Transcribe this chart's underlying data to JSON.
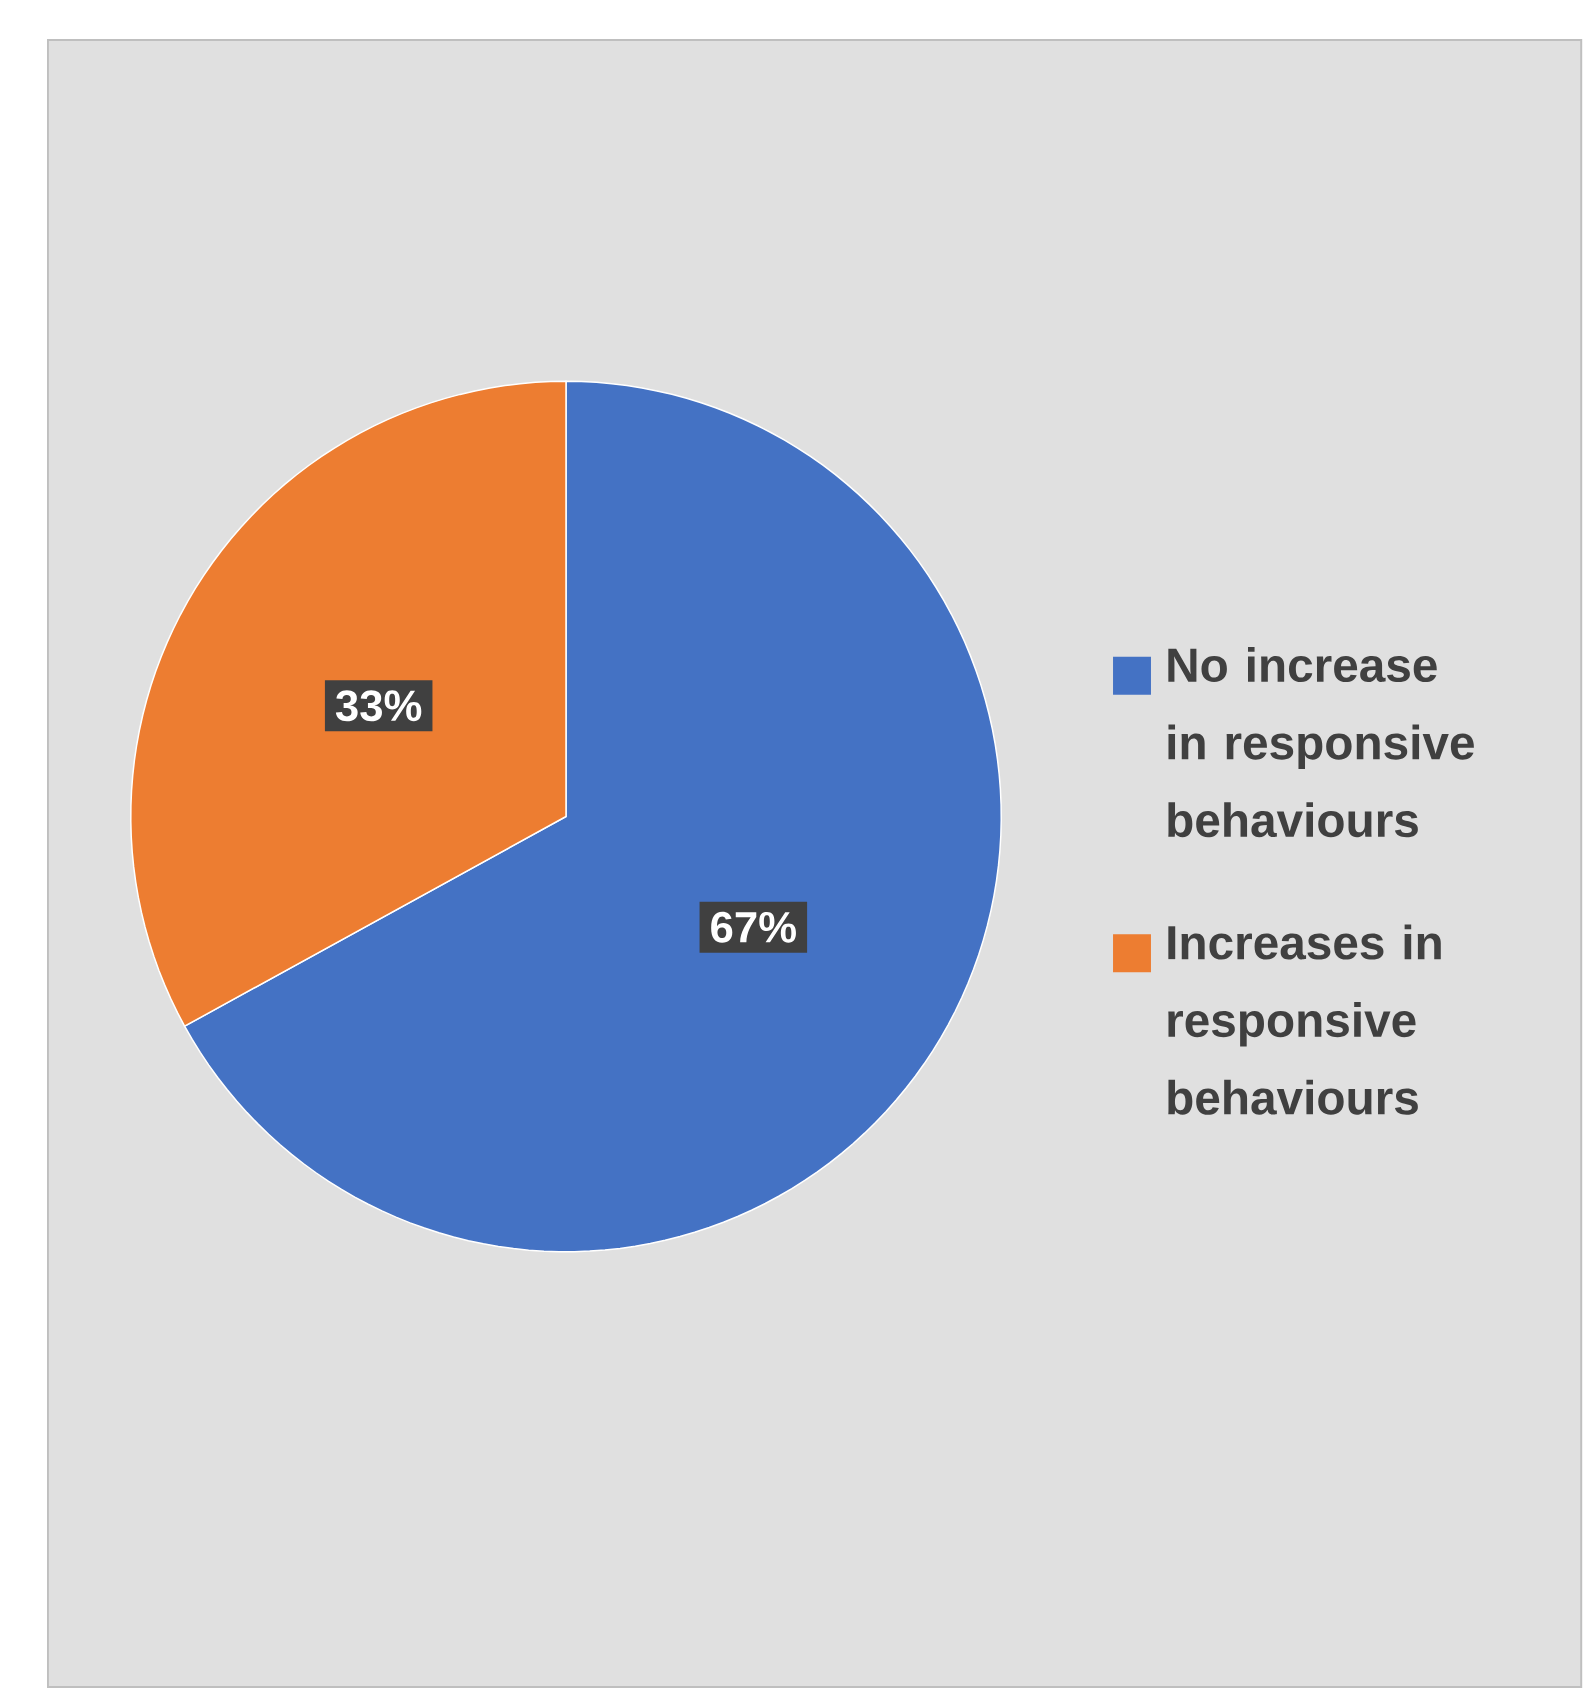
{
  "chart_data": {
    "type": "pie",
    "categories": [
      "No increase in responsive behaviours",
      "Increases in responsive behaviours"
    ],
    "values": [
      67,
      33
    ],
    "colors": [
      "#4472c4",
      "#ed7d31"
    ],
    "value_labels": [
      "67%",
      "33%"
    ],
    "legend": "right"
  }
}
